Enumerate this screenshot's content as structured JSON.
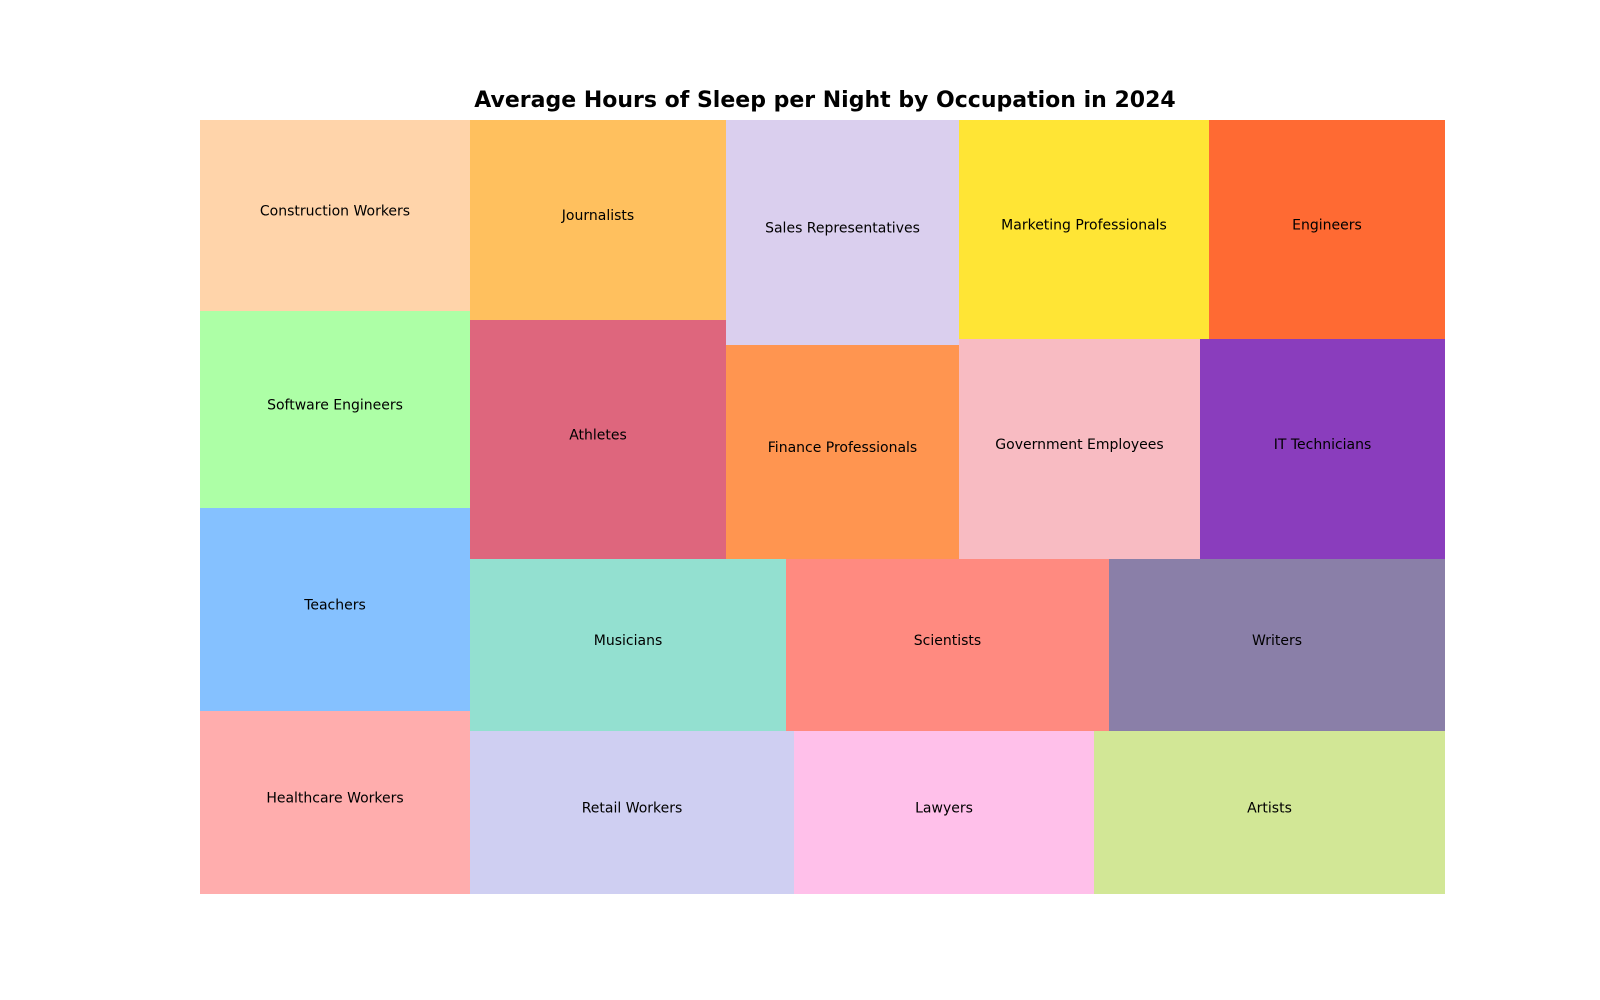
{
  "chart_data": {
    "type": "treemap",
    "title": "Average Hours of Sleep per Night by Occupation in 2024",
    "columns": [
      {
        "items": [
          {
            "label": "Construction Workers",
            "color": "#ffd4aa"
          },
          {
            "label": "Software Engineers",
            "color": "#adffa6"
          },
          {
            "label": "Teachers",
            "color": "#85c1ff"
          },
          {
            "label": "Healthcare Workers",
            "color": "#ffadad"
          }
        ]
      },
      {
        "items": [
          {
            "label": "Journalists",
            "color": "#ffc05e"
          },
          {
            "label": "Athletes",
            "color": "#de667d"
          }
        ]
      },
      {
        "items": [
          {
            "label": "Sales Representatives",
            "color": "#dacfee"
          },
          {
            "label": "Finance Professionals",
            "color": "#ff9550"
          }
        ]
      },
      {
        "items": [
          {
            "label": "Marketing Professionals",
            "color": "#ffe535"
          },
          {
            "label": "Government Employees",
            "color": "#f8bbc2"
          }
        ]
      },
      {
        "items": [
          {
            "label": "Engineers",
            "color": "#ff6a33"
          },
          {
            "label": "IT Technicians",
            "color": "#8a3dbd"
          }
        ]
      }
    ],
    "rows": [
      {
        "items": [
          {
            "label": "Musicians",
            "color": "#93e0d0"
          },
          {
            "label": "Scientists",
            "color": "#ff8a80"
          },
          {
            "label": "Writers",
            "color": "#8a7fa8"
          }
        ]
      },
      {
        "items": [
          {
            "label": "Retail Workers",
            "color": "#cfcff2"
          },
          {
            "label": "Lawyers",
            "color": "#ffc0ea"
          },
          {
            "label": "Artists",
            "color": "#d2e796"
          }
        ]
      }
    ]
  }
}
